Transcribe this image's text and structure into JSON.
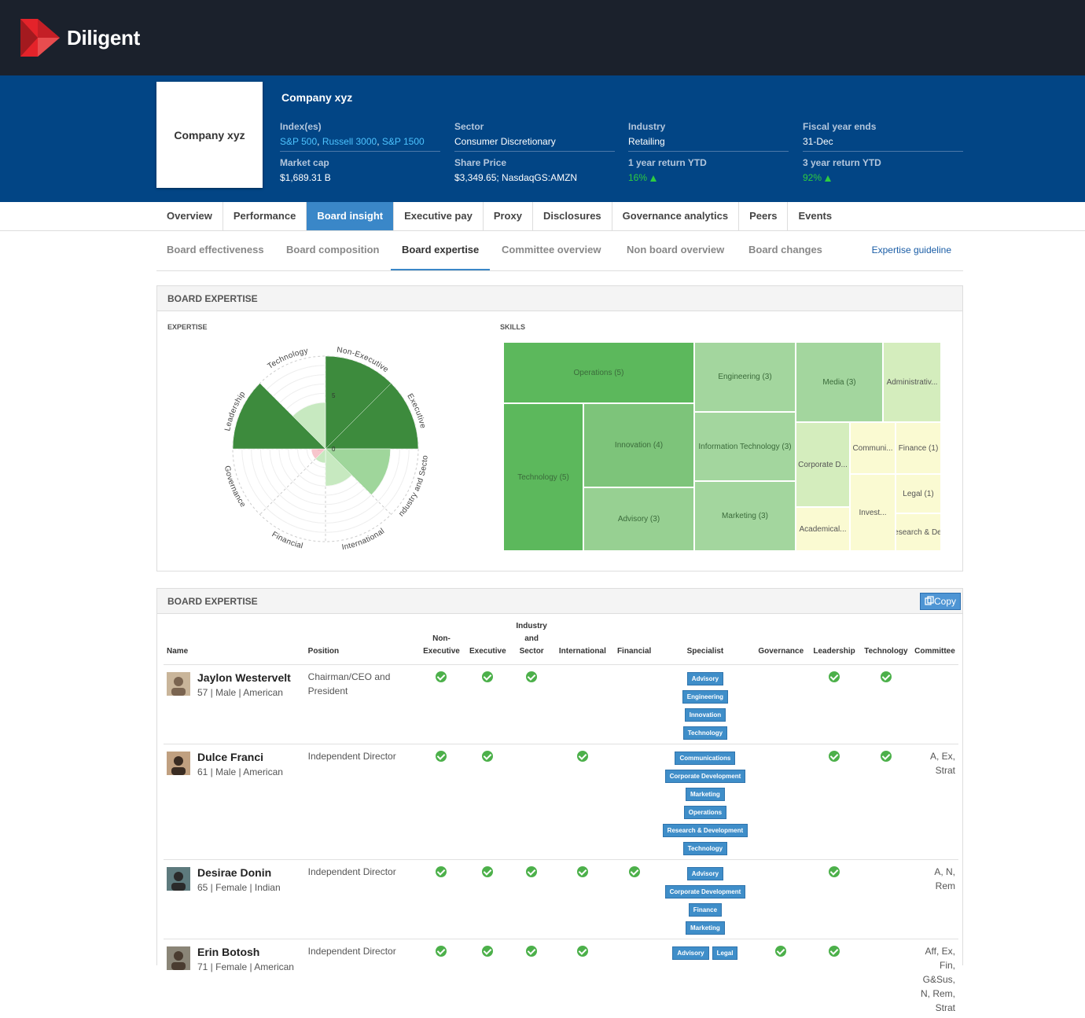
{
  "app": {
    "brand": "Diligent"
  },
  "company": {
    "name": "Company xyz",
    "card_label": "Company xyz",
    "indexes_label": "Index(es)",
    "indexes": [
      "S&P 500",
      "Russell 3000",
      "S&P 1500"
    ],
    "sector_label": "Sector",
    "sector": "Consumer Discretionary",
    "industry_label": "Industry",
    "industry": "Retailing",
    "fiscal_label": "Fiscal year ends",
    "fiscal": "31-Dec",
    "market_cap_label": "Market cap",
    "market_cap": "$1,689.31 B",
    "share_price_label": "Share Price",
    "share_price": "$3,349.65; NasdaqGS:AMZN",
    "ret1_label": "1 year return YTD",
    "ret1": "16%",
    "ret3_label": "3 year return YTD",
    "ret3": "92%"
  },
  "tabs": [
    "Overview",
    "Performance",
    "Board insight",
    "Executive pay",
    "Proxy",
    "Disclosures",
    "Governance analytics",
    "Peers",
    "Events"
  ],
  "active_tab": "Board insight",
  "subtabs": [
    "Board effectiveness",
    "Board composition",
    "Board expertise",
    "Committee overview",
    "Non board overview",
    "Board changes"
  ],
  "active_subtab": "Board expertise",
  "guideline_link": "Expertise guideline",
  "panel1": {
    "title": "BOARD EXPERTISE",
    "expertise_label": "EXPERTISE",
    "skills_label": "SKILLS"
  },
  "chart_data": [
    {
      "type": "polar-area",
      "categories": [
        "Non-Executive",
        "Executive",
        "Industry and Sector",
        "International",
        "Financial",
        "Governance",
        "Leadership",
        "Technology"
      ],
      "values": [
        5,
        5,
        3.5,
        2,
        0,
        0,
        5,
        2.5
      ],
      "rlim": [
        0,
        5
      ],
      "tick_labels": [
        "0",
        "5"
      ],
      "colors": [
        "#3d8b3d",
        "#3d8b3d",
        "#9fd69b",
        "#c7e9c0",
        "#c7e9c0",
        "#f7c6cc",
        "#3d8b3d",
        "#c7e9c0"
      ]
    },
    {
      "type": "treemap",
      "cells": [
        {
          "label": "Operations (5)",
          "value": 5
        },
        {
          "label": "Technology (5)",
          "value": 5
        },
        {
          "label": "Innovation (4)",
          "value": 4
        },
        {
          "label": "Advisory (3)",
          "value": 3
        },
        {
          "label": "Engineering (3)",
          "value": 3
        },
        {
          "label": "Information Technology (3)",
          "value": 3
        },
        {
          "label": "Marketing (3)",
          "value": 3
        },
        {
          "label": "Media (3)",
          "value": 3
        },
        {
          "label": "Administrativ...",
          "value": 2
        },
        {
          "label": "Corporate D...",
          "value": 2
        },
        {
          "label": "Academical...",
          "value": 1
        },
        {
          "label": "Communi...",
          "value": 1
        },
        {
          "label": "Finance (1)",
          "value": 1
        },
        {
          "label": "Legal (1)",
          "value": 1
        },
        {
          "label": "Invest...",
          "value": 1
        },
        {
          "label": "Research & De...",
          "value": 1
        }
      ]
    }
  ],
  "panel2": {
    "title": "BOARD EXPERTISE",
    "copy_label": "Copy",
    "headers": {
      "name": "Name",
      "position": "Position",
      "nonexec": "Non-Executive",
      "exec": "Executive",
      "industry": "Industry and Sector",
      "international": "International",
      "financial": "Financial",
      "specialist": "Specialist",
      "governance": "Governance",
      "leadership": "Leadership",
      "technology": "Technology",
      "committee": "Committee"
    },
    "rows": [
      {
        "name": "Jaylon Westervelt",
        "meta": "57 | Male | American",
        "position": "Chairman/CEO and President",
        "nonexec": true,
        "exec": true,
        "industry": true,
        "international": false,
        "financial": false,
        "specialist": [
          "Advisory",
          "Engineering",
          "Innovation",
          "Technology"
        ],
        "governance": false,
        "leadership": true,
        "technology": true,
        "committee": ""
      },
      {
        "name": "Dulce Franci",
        "meta": "61 | Male | American",
        "position": "Independent Director",
        "nonexec": true,
        "exec": true,
        "industry": false,
        "international": true,
        "financial": false,
        "specialist": [
          "Communications",
          "Corporate Development",
          "Marketing",
          "Operations",
          "Research & Development",
          "Technology"
        ],
        "governance": false,
        "leadership": true,
        "technology": true,
        "committee": "A, Ex, Strat"
      },
      {
        "name": "Desirae Donin",
        "meta": "65 | Female | Indian",
        "position": "Independent Director",
        "nonexec": true,
        "exec": true,
        "industry": true,
        "international": true,
        "financial": true,
        "specialist": [
          "Advisory",
          "Corporate Development",
          "Finance",
          "Marketing"
        ],
        "governance": false,
        "leadership": true,
        "technology": false,
        "committee": "A, N, Rem"
      },
      {
        "name": "Erin Botosh",
        "meta": "71 | Female | American",
        "position": "Independent Director",
        "nonexec": true,
        "exec": true,
        "industry": true,
        "international": true,
        "financial": false,
        "specialist": [
          "Advisory",
          "Legal"
        ],
        "governance": true,
        "leadership": true,
        "technology": false,
        "committee": "Aff, Ex, Fin, G&Sus, N, Rem, Strat"
      }
    ]
  }
}
